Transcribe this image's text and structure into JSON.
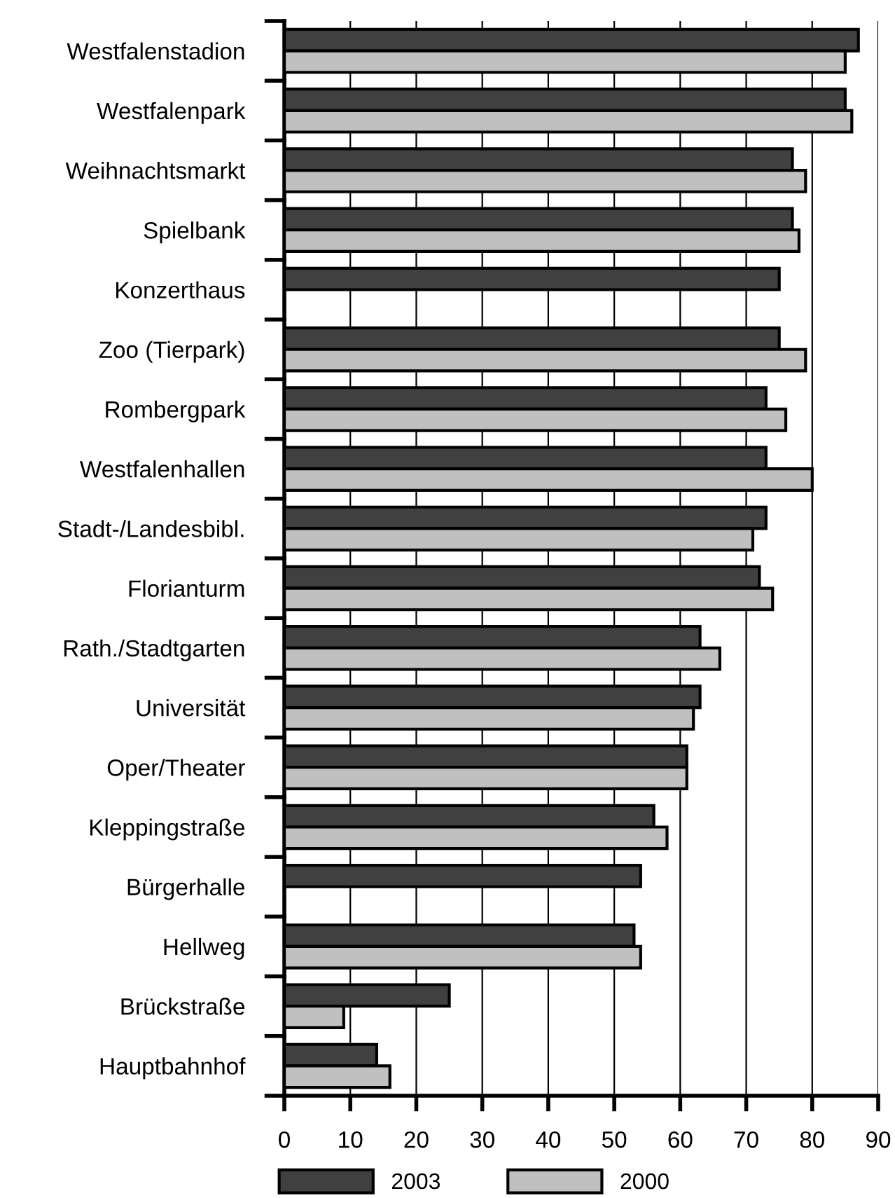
{
  "chart_data": {
    "type": "bar",
    "orientation": "horizontal",
    "categories": [
      "Westfalenstadion",
      "Westfalenpark",
      "Weihnachtsmarkt",
      "Spielbank",
      "Konzerthaus",
      "Zoo (Tierpark)",
      "Rombergpark",
      "Westfalenhallen",
      "Stadt-/Landesbibl.",
      "Florianturm",
      "Rath./Stadtgarten",
      "Universität",
      "Oper/Theater",
      "Kleppingstraße",
      "Bürgerhalle",
      "Hellweg",
      "Brückstraße",
      "Hauptbahnhof"
    ],
    "series": [
      {
        "name": "2003",
        "color": "#404040",
        "values": [
          87,
          85,
          77,
          77,
          75,
          75,
          73,
          73,
          73,
          72,
          63,
          63,
          61,
          56,
          54,
          53,
          25,
          14
        ]
      },
      {
        "name": "2000",
        "color": "#c0c0c0",
        "values": [
          85,
          86,
          79,
          78,
          null,
          79,
          76,
          80,
          71,
          74,
          66,
          62,
          61,
          58,
          null,
          54,
          9,
          16
        ]
      }
    ],
    "xlim": [
      0,
      90
    ],
    "xticks": [
      0,
      10,
      20,
      30,
      40,
      50,
      60,
      70,
      80,
      90
    ],
    "grid": "x",
    "legend": "bottom"
  }
}
